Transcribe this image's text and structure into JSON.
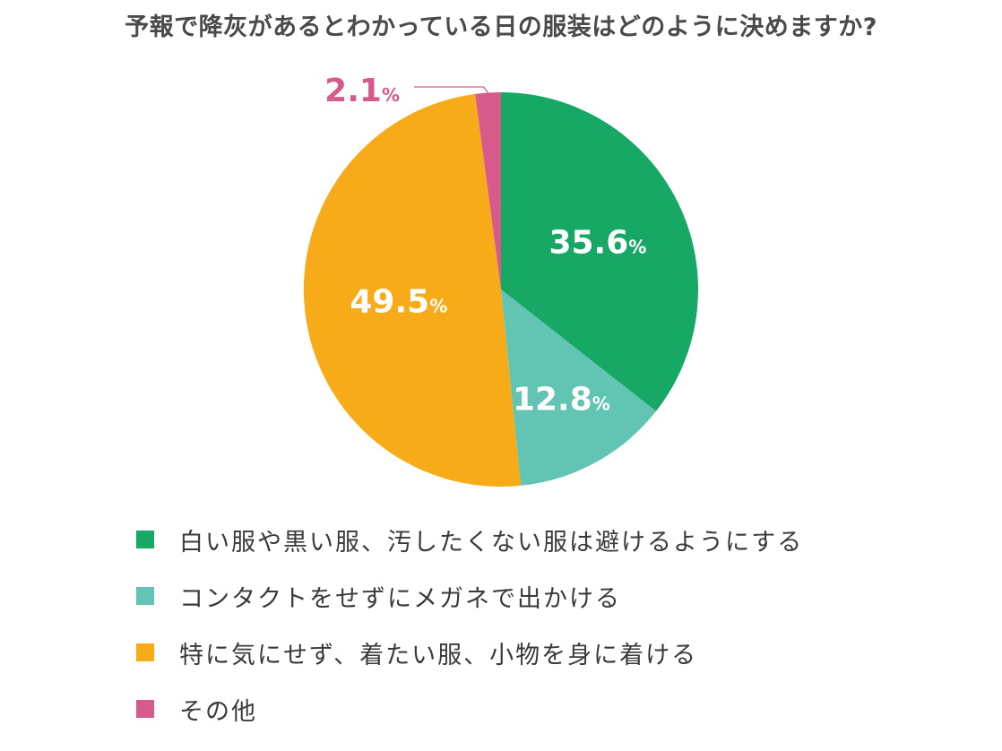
{
  "chart_data": {
    "type": "pie",
    "title": "予報で降灰があるとわかっている日の服装はどのように決めますか?",
    "slices": [
      {
        "label": "白い服や黒い服、汚したくない服は避けるようにする",
        "value": 35.6,
        "display": "35.6",
        "unit": "%",
        "color": "#17a866"
      },
      {
        "label": "コンタクトをせずにメガネで出かける",
        "value": 12.8,
        "display": "12.8",
        "unit": "%",
        "color": "#62c4b3"
      },
      {
        "label": "特に気にせず、着たい服、小物を身に着ける",
        "value": 49.5,
        "display": "49.5",
        "unit": "%",
        "color": "#f8ab18"
      },
      {
        "label": "その他",
        "value": 2.1,
        "display": "2.1",
        "unit": "%",
        "color": "#d75b8a"
      }
    ],
    "start_angle": "12 o'clock",
    "direction": "clockwise",
    "legend_position": "bottom"
  }
}
